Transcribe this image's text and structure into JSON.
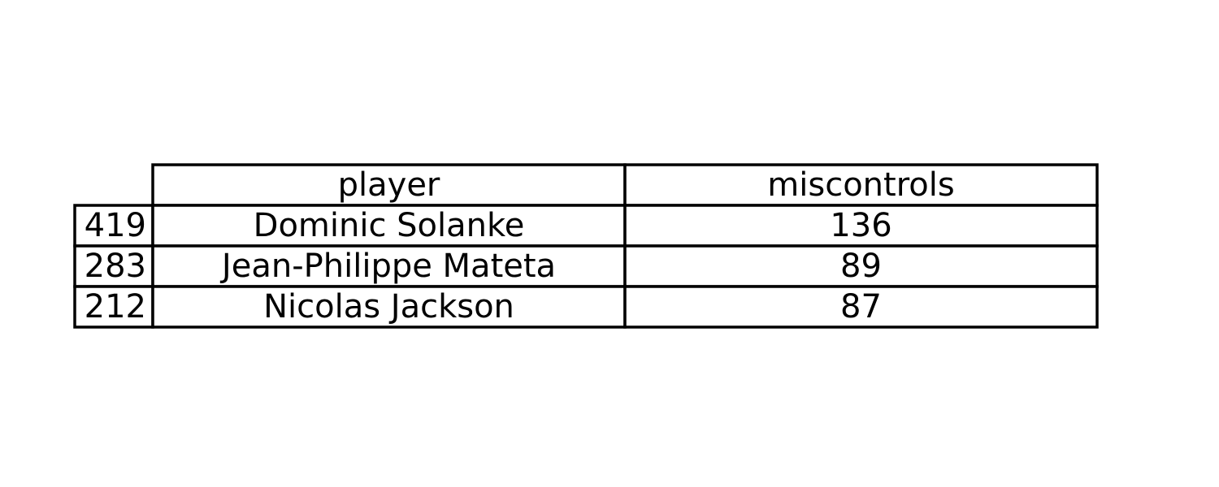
{
  "chart_data": {
    "type": "table",
    "columns": [
      "player",
      "miscontrols"
    ],
    "rows": [
      {
        "index": "419",
        "player": "Dominic Solanke",
        "miscontrols": 136
      },
      {
        "index": "283",
        "player": "Jean-Philippe Mateta",
        "miscontrols": 89
      },
      {
        "index": "212",
        "player": "Nicolas Jackson",
        "miscontrols": 87
      }
    ],
    "border_color": "#000000",
    "text_color": "#000000"
  }
}
